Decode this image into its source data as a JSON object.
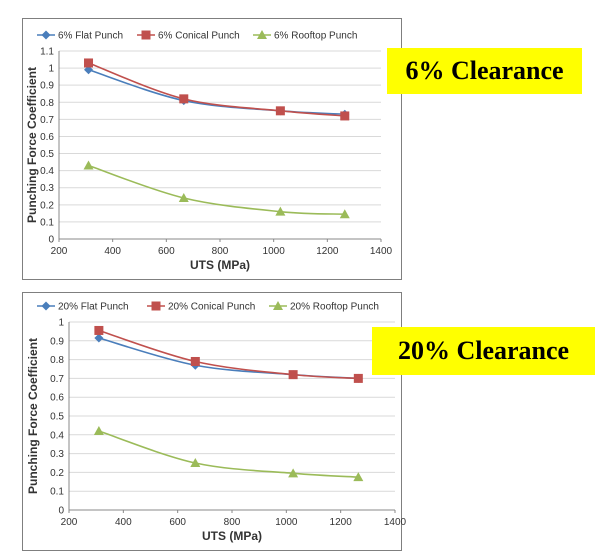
{
  "labels": {
    "top": "6% Clearance",
    "bottom": "20% Clearance"
  },
  "chart_data": [
    {
      "type": "line",
      "title": "",
      "xlabel": "UTS (MPa)",
      "ylabel": "Punching Force Coefficient",
      "xlim": [
        200,
        1400
      ],
      "ylim": [
        0,
        1.1
      ],
      "xticks": [
        200,
        400,
        600,
        800,
        1000,
        1200,
        1400
      ],
      "yticks": [
        0,
        0.1,
        0.2,
        0.3,
        0.4,
        0.5,
        0.6,
        0.7,
        0.8,
        0.9,
        1,
        1.1
      ],
      "grid": true,
      "legend_position": "top",
      "series": [
        {
          "name": "6% Flat Punch",
          "color": "#4a7ebb",
          "marker": "diamond",
          "x": [
            310,
            665,
            1025,
            1265
          ],
          "y": [
            0.99,
            0.81,
            0.75,
            0.73
          ]
        },
        {
          "name": "6% Conical Punch",
          "color": "#c0504d",
          "marker": "square",
          "x": [
            310,
            665,
            1025,
            1265
          ],
          "y": [
            1.03,
            0.82,
            0.75,
            0.72
          ]
        },
        {
          "name": "6% Rooftop Punch",
          "color": "#9bbb59",
          "marker": "triangle",
          "x": [
            310,
            665,
            1025,
            1265
          ],
          "y": [
            0.43,
            0.24,
            0.16,
            0.145
          ]
        }
      ]
    },
    {
      "type": "line",
      "title": "",
      "xlabel": "UTS (MPa)",
      "ylabel": "Punching Force Coefficient",
      "xlim": [
        200,
        1400
      ],
      "ylim": [
        0,
        1
      ],
      "xticks": [
        200,
        400,
        600,
        800,
        1000,
        1200,
        1400
      ],
      "yticks": [
        0,
        0.1,
        0.2,
        0.3,
        0.4,
        0.5,
        0.6,
        0.7,
        0.8,
        0.9,
        1
      ],
      "grid": true,
      "legend_position": "top",
      "series": [
        {
          "name": "20% Flat Punch",
          "color": "#4a7ebb",
          "marker": "diamond",
          "x": [
            310,
            665,
            1025,
            1265
          ],
          "y": [
            0.915,
            0.77,
            0.72,
            0.7
          ]
        },
        {
          "name": "20% Conical Punch",
          "color": "#c0504d",
          "marker": "square",
          "x": [
            310,
            665,
            1025,
            1265
          ],
          "y": [
            0.955,
            0.79,
            0.72,
            0.7
          ]
        },
        {
          "name": "20% Rooftop Punch",
          "color": "#9bbb59",
          "marker": "triangle",
          "x": [
            310,
            665,
            1025,
            1265
          ],
          "y": [
            0.42,
            0.25,
            0.195,
            0.175
          ]
        }
      ]
    }
  ]
}
